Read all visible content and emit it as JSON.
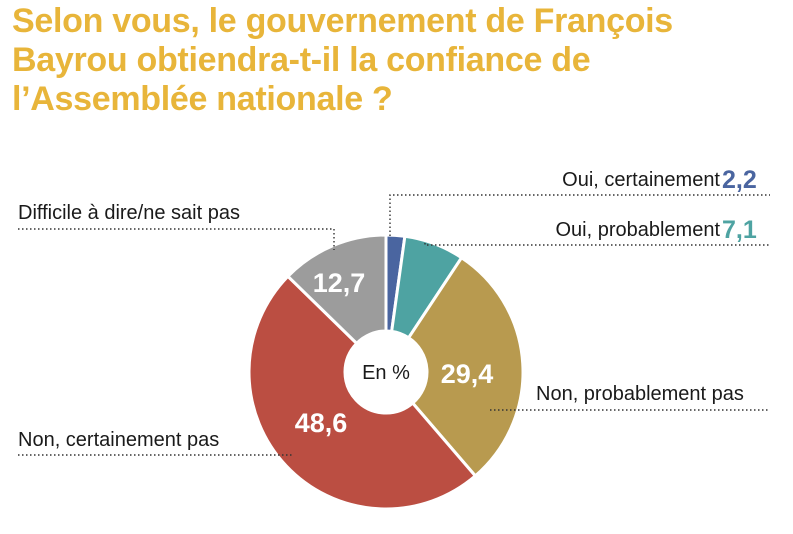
{
  "title_lines": [
    "Selon vous, le gouvernement de François",
    "Bayrou obtiendra-t-il la confiance de",
    "l’Assemblée nationale ?"
  ],
  "chart_data": {
    "type": "pie",
    "donut": true,
    "center_label": "En %",
    "slices": [
      {
        "label": "Oui, certainement",
        "value": 2.2,
        "display": "2,2",
        "color": "#4a65a0"
      },
      {
        "label": "Oui, probablement",
        "value": 7.1,
        "display": "7,1",
        "color": "#4ea3a2"
      },
      {
        "label": "Non, probablement pas",
        "value": 29.4,
        "display": "29,4",
        "color": "#b89a4f"
      },
      {
        "label": "Non, certainement pas",
        "value": 48.6,
        "display": "48,6",
        "color": "#bb4e42"
      },
      {
        "label": "Difficile à dire/ne sait pas",
        "value": 12.7,
        "display": "12,7",
        "color": "#9c9c9c"
      }
    ]
  }
}
